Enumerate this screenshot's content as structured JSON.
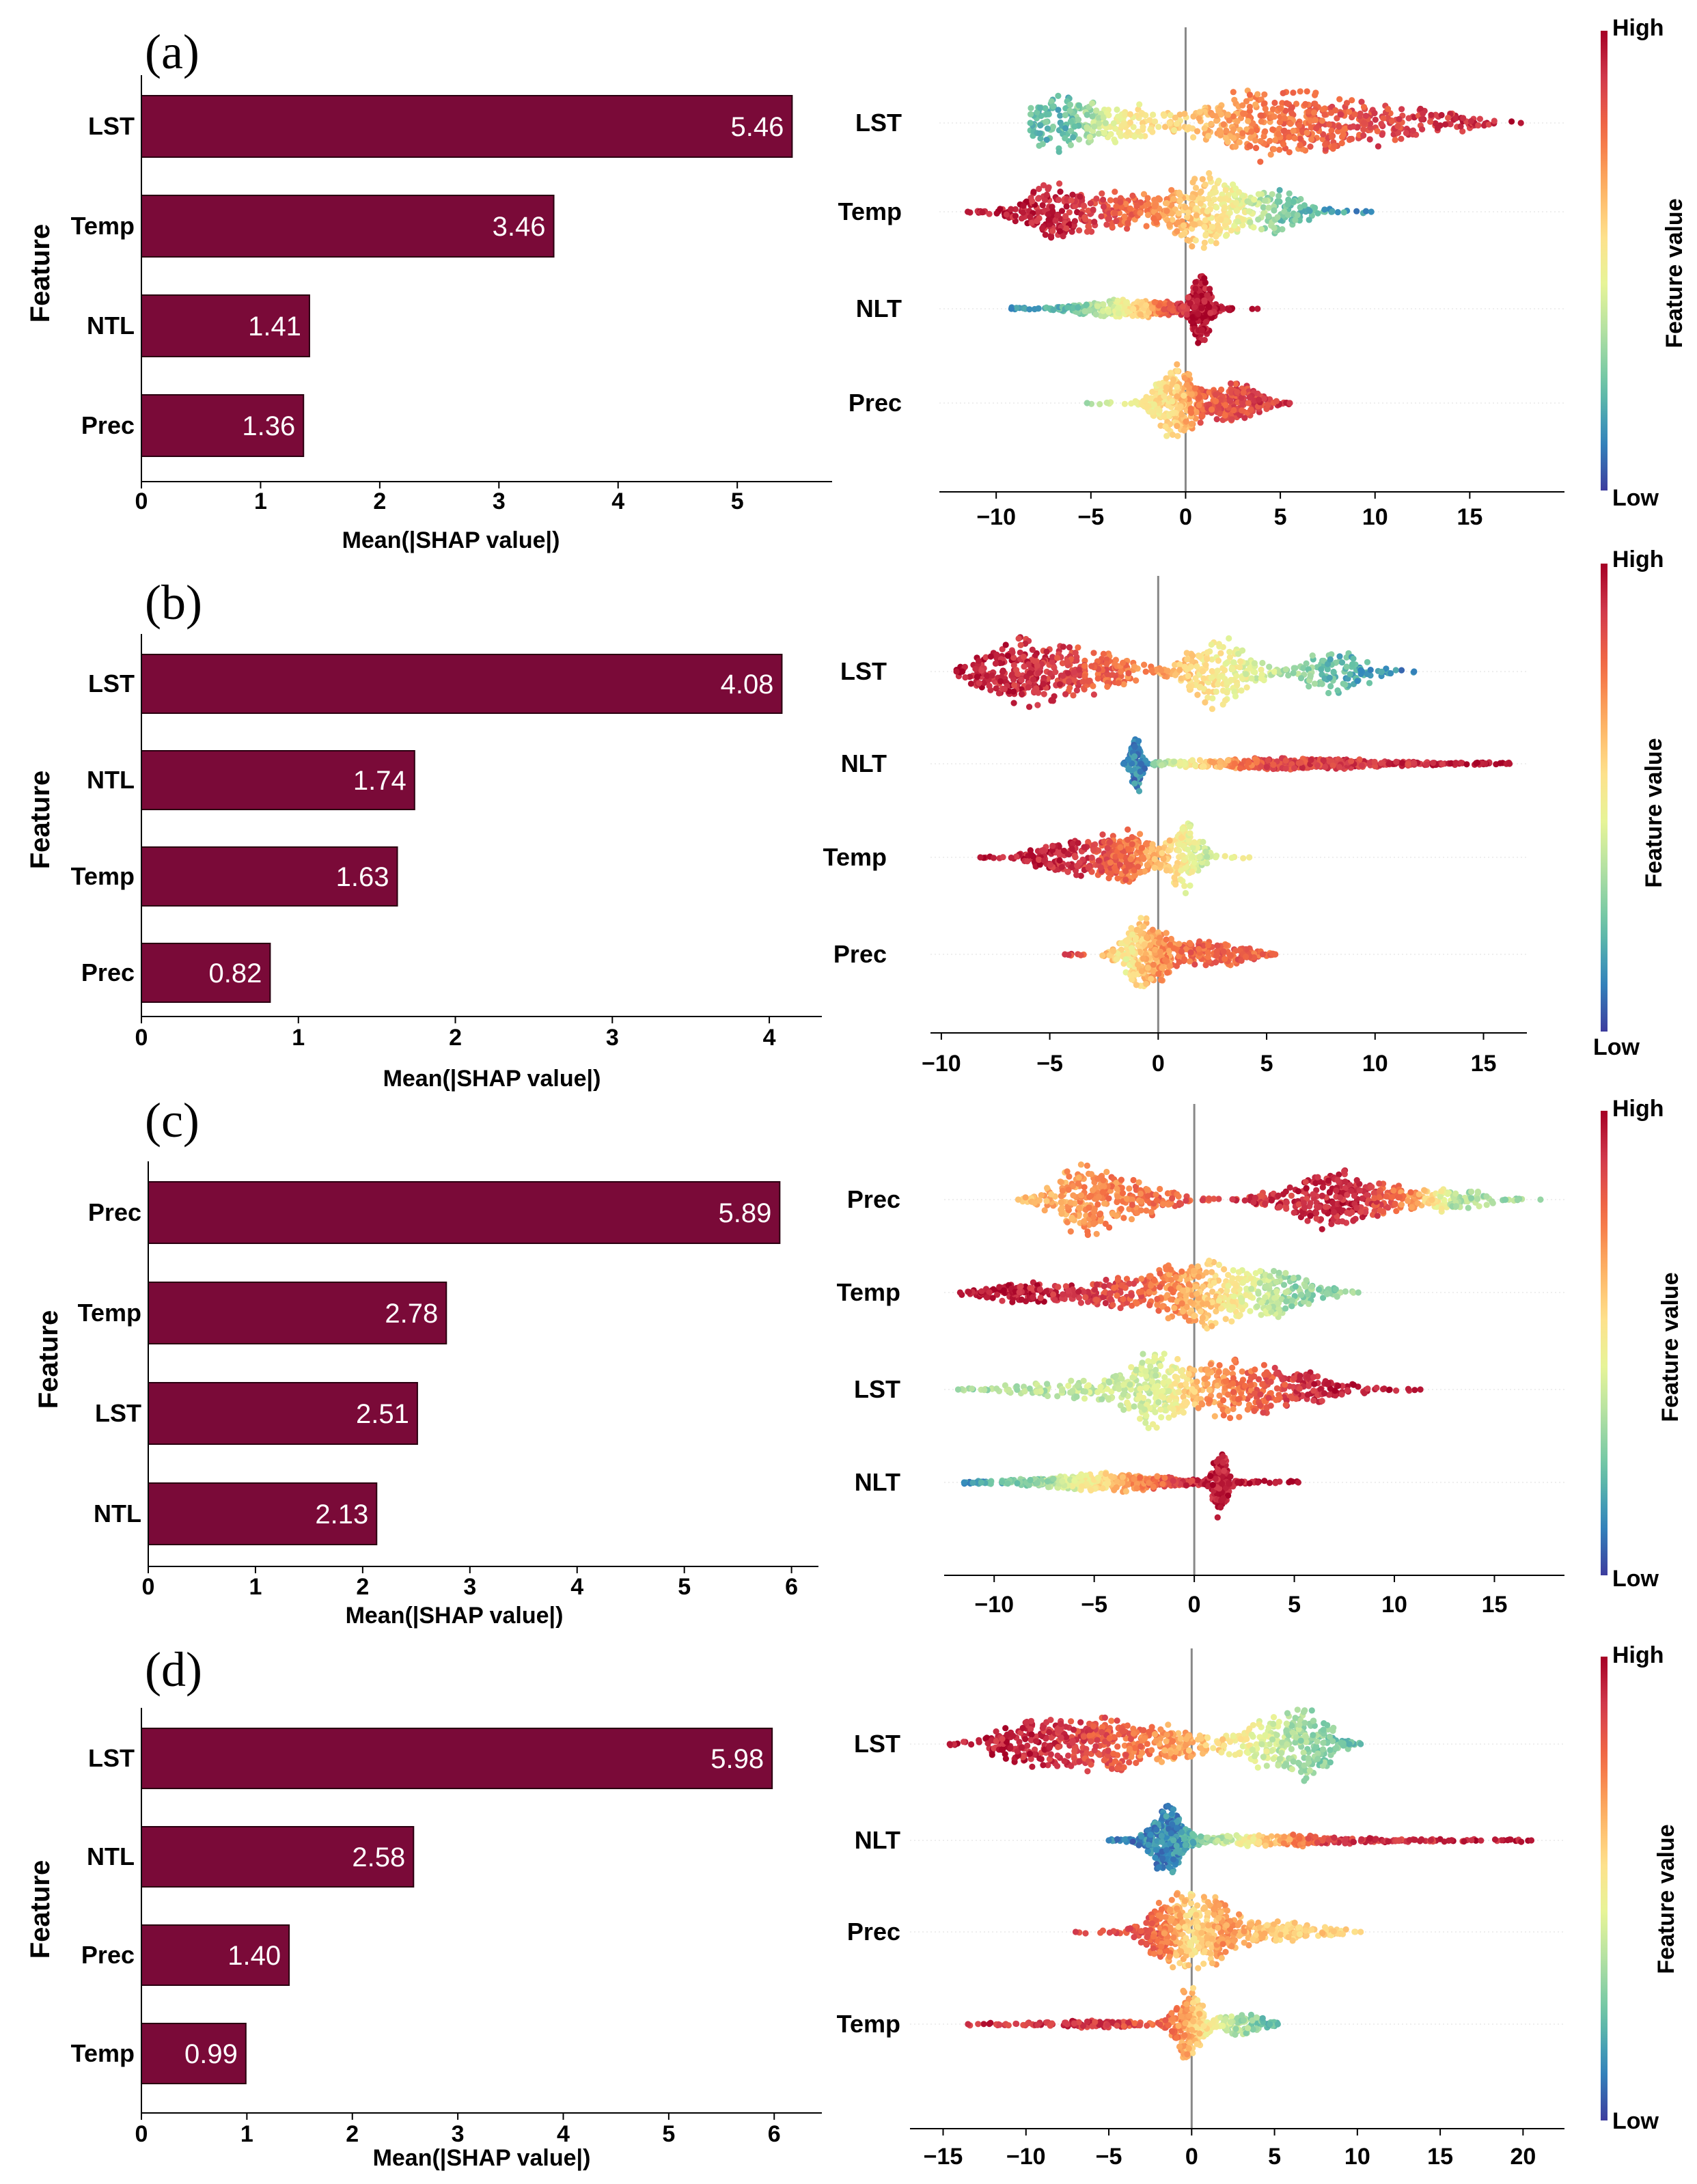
{
  "colors": {
    "bar_fill": "#7a0a38",
    "axis": "#000000",
    "zero_line": "#888888",
    "grid": "#eeeeee",
    "colormap": [
      "#3d3d9e",
      "#3288bd",
      "#66c2a5",
      "#abdda4",
      "#e6f598",
      "#fee08b",
      "#fdae61",
      "#f46d43",
      "#d53e4f",
      "#a50026"
    ]
  },
  "chart_data": [
    {
      "panel": "(a)",
      "type": "bar",
      "orientation": "horizontal",
      "categories": [
        "LST",
        "Temp",
        "NTL",
        "Prec"
      ],
      "values": [
        5.46,
        3.46,
        1.41,
        1.36
      ],
      "value_labels": [
        "5.46",
        "3.46",
        "1.41",
        "1.36"
      ],
      "xlabel": "Mean(|SHAP value|)",
      "ylabel": "Feature",
      "xticks": [
        0,
        1,
        2,
        3,
        4,
        5
      ],
      "xlim": [
        0,
        5.75
      ]
    },
    {
      "panel": "(a)",
      "type": "scatter",
      "subtype": "beeswarm",
      "features": [
        "LST",
        "Temp",
        "NLT",
        "Prec"
      ],
      "xticks": [
        -10,
        -5,
        0,
        5,
        10,
        15
      ],
      "xtick_labels": [
        "−10",
        "−5",
        "0",
        "5",
        "10",
        "15"
      ],
      "xlim": [
        -13,
        20
      ],
      "colorbar": {
        "label": "Feature value",
        "high": "High",
        "low": "Low"
      },
      "distributions": [
        {
          "min": -8.2,
          "max": 17.7,
          "modes": [
            [
              -6.8,
              1.4,
              0.55
            ],
            [
              -3.5,
              1.5,
              0.35
            ],
            [
              4.5,
              3.2,
              0.7
            ],
            [
              11,
              3.2,
              0.3
            ]
          ],
          "color_stops": [
            [
              -8.2,
              0.22
            ],
            [
              -6.2,
              0.22
            ],
            [
              -3.5,
              0.5
            ],
            [
              0,
              0.58
            ],
            [
              3,
              0.72
            ],
            [
              8,
              0.82
            ],
            [
              17.7,
              0.96
            ]
          ],
          "density": 180,
          "extent": 0.32
        },
        {
          "min": -11.5,
          "max": 9.8,
          "modes": [
            [
              -7.2,
              1.5,
              0.75
            ],
            [
              -3.3,
              1.6,
              0.5
            ],
            [
              1,
              1.5,
              1.0
            ],
            [
              5,
              1.4,
              0.55
            ]
          ],
          "color_stops": [
            [
              -11.5,
              0.96
            ],
            [
              -6,
              0.92
            ],
            [
              -2,
              0.75
            ],
            [
              0.8,
              0.58
            ],
            [
              3,
              0.45
            ],
            [
              5,
              0.25
            ],
            [
              9.8,
              0.12
            ]
          ],
          "density": 170,
          "extent": 0.34
        },
        {
          "min": -9.2,
          "max": 3.8,
          "modes": [
            [
              -2.8,
              2.4,
              0.35
            ],
            [
              0.8,
              0.4,
              1.3
            ]
          ],
          "color_stops": [
            [
              -9.2,
              0.1
            ],
            [
              -5,
              0.3
            ],
            [
              -2,
              0.65
            ],
            [
              0.2,
              0.96
            ],
            [
              3.8,
              0.96
            ]
          ],
          "density": 130,
          "extent": 0.34
        },
        {
          "min": -5.2,
          "max": 5.5,
          "modes": [
            [
              -0.5,
              0.9,
              1.0
            ],
            [
              2.5,
              1.2,
              0.55
            ]
          ],
          "color_stops": [
            [
              -5.2,
              0.3
            ],
            [
              -2,
              0.5
            ],
            [
              -0.3,
              0.6
            ],
            [
              1,
              0.82
            ],
            [
              5.5,
              0.9
            ]
          ],
          "density": 120,
          "extent": 0.38
        }
      ]
    },
    {
      "panel": "(b)",
      "type": "bar",
      "orientation": "horizontal",
      "categories": [
        "LST",
        "NTL",
        "Temp",
        "Prec"
      ],
      "values": [
        4.08,
        1.74,
        1.63,
        0.82
      ],
      "value_labels": [
        "4.08",
        "1.74",
        "1.63",
        "0.82"
      ],
      "xlabel": "Mean(|SHAP value|)",
      "ylabel": "Feature",
      "xticks": [
        0,
        1,
        2,
        3,
        4
      ],
      "xlim": [
        0,
        4.3
      ]
    },
    {
      "panel": "(b)",
      "type": "scatter",
      "subtype": "beeswarm",
      "features": [
        "LST",
        "NLT",
        "Temp",
        "Prec"
      ],
      "xticks": [
        -10,
        -5,
        0,
        5,
        10,
        15
      ],
      "xtick_labels": [
        "−10",
        "−5",
        "0",
        "5",
        "10",
        "15"
      ],
      "xlim": [
        -10.5,
        17
      ],
      "colorbar": {
        "label": "Feature value",
        "high": "High",
        "low": "Low"
      },
      "distributions": [
        {
          "min": -9.3,
          "max": 11.8,
          "modes": [
            [
              -6.2,
              1.7,
              0.85
            ],
            [
              -2.5,
              1.6,
              0.45
            ],
            [
              2.8,
              1.2,
              0.9
            ],
            [
              8.2,
              1.3,
              0.55
            ]
          ],
          "color_stops": [
            [
              -9.3,
              0.96
            ],
            [
              -5,
              0.9
            ],
            [
              -1,
              0.75
            ],
            [
              2,
              0.55
            ],
            [
              5.5,
              0.38
            ],
            [
              8,
              0.22
            ],
            [
              11.8,
              0.1
            ]
          ],
          "density": 180,
          "extent": 0.32
        },
        {
          "min": -1.6,
          "max": 16.2,
          "modes": [
            [
              -1.0,
              0.2,
              1.3
            ],
            [
              6,
              4.2,
              0.22
            ]
          ],
          "color_stops": [
            [
              -1.6,
              0.1
            ],
            [
              -0.6,
              0.12
            ],
            [
              0.2,
              0.32
            ],
            [
              2,
              0.6
            ],
            [
              5,
              0.85
            ],
            [
              16.2,
              0.96
            ]
          ],
          "density": 140,
          "extent": 0.34
        },
        {
          "min": -8.2,
          "max": 4.2,
          "modes": [
            [
              -3.8,
              1.6,
              0.5
            ],
            [
              -1.2,
              1.0,
              0.6
            ],
            [
              1.3,
              0.6,
              1.0
            ]
          ],
          "color_stops": [
            [
              -8.2,
              0.96
            ],
            [
              -4,
              0.92
            ],
            [
              -1,
              0.75
            ],
            [
              0.8,
              0.55
            ],
            [
              2,
              0.4
            ],
            [
              4.2,
              0.5
            ]
          ],
          "density": 130,
          "extent": 0.36
        },
        {
          "min": -4.3,
          "max": 5.4,
          "modes": [
            [
              -0.6,
              0.8,
              1.0
            ],
            [
              2.5,
              1.3,
              0.4
            ]
          ],
          "color_stops": [
            [
              -4.3,
              0.9
            ],
            [
              -1.5,
              0.5
            ],
            [
              0,
              0.7
            ],
            [
              1.5,
              0.8
            ],
            [
              5.4,
              0.8
            ]
          ],
          "density": 120,
          "extent": 0.34
        }
      ]
    },
    {
      "panel": "(c)",
      "type": "bar",
      "orientation": "horizontal",
      "categories": [
        "Prec",
        "Temp",
        "LST",
        "NTL"
      ],
      "values": [
        5.89,
        2.78,
        2.51,
        2.13
      ],
      "value_labels": [
        "5.89",
        "2.78",
        "2.51",
        "2.13"
      ],
      "xlabel": "Mean(|SHAP value|)",
      "ylabel": "Feature",
      "xticks": [
        0,
        1,
        2,
        3,
        4,
        5,
        6
      ],
      "xlim": [
        0,
        6.2
      ]
    },
    {
      "panel": "(c)",
      "type": "scatter",
      "subtype": "beeswarm",
      "features": [
        "Prec",
        "Temp",
        "LST",
        "NLT"
      ],
      "xticks": [
        -10,
        -5,
        0,
        5,
        10,
        15
      ],
      "xtick_labels": [
        "−10",
        "−5",
        "0",
        "5",
        "10",
        "15"
      ],
      "xlim": [
        -12.5,
        18.5
      ],
      "colorbar": {
        "label": "Feature value",
        "high": "High",
        "low": "Low"
      },
      "distributions": [
        {
          "min": -8.8,
          "max": 17.3,
          "modes": [
            [
              -5.5,
              1.3,
              0.9
            ],
            [
              -2.5,
              1.4,
              0.35
            ],
            [
              7.2,
              2.2,
              0.75
            ],
            [
              13,
              1.6,
              0.25
            ]
          ],
          "color_stops": [
            [
              -8.8,
              0.62
            ],
            [
              -5,
              0.72
            ],
            [
              -2,
              0.78
            ],
            [
              3,
              0.9
            ],
            [
              8,
              0.94
            ],
            [
              11,
              0.7
            ],
            [
              13,
              0.35
            ],
            [
              17.3,
              0.3
            ]
          ],
          "density": 180,
          "extent": 0.3
        },
        {
          "min": -11.7,
          "max": 8.2,
          "modes": [
            [
              -8.5,
              1.8,
              0.3
            ],
            [
              -4.2,
              1.3,
              0.35
            ],
            [
              0,
              1.7,
              0.95
            ],
            [
              4.2,
              1.6,
              0.6
            ]
          ],
          "color_stops": [
            [
              -11.7,
              0.96
            ],
            [
              -6,
              0.92
            ],
            [
              -2,
              0.78
            ],
            [
              0.5,
              0.62
            ],
            [
              3,
              0.42
            ],
            [
              5,
              0.3
            ],
            [
              8.2,
              0.3
            ]
          ],
          "density": 170,
          "extent": 0.34
        },
        {
          "min": -11.8,
          "max": 11.3,
          "modes": [
            [
              -2.0,
              1.3,
              0.95
            ],
            [
              2,
              1.5,
              0.8
            ],
            [
              5.5,
              1.8,
              0.45
            ],
            [
              -6.5,
              2.5,
              0.25
            ]
          ],
          "color_stops": [
            [
              -11.8,
              0.3
            ],
            [
              -6,
              0.38
            ],
            [
              -1.5,
              0.42
            ],
            [
              0.5,
              0.68
            ],
            [
              3,
              0.8
            ],
            [
              7,
              0.95
            ],
            [
              11.3,
              0.96
            ]
          ],
          "density": 160,
          "extent": 0.32
        },
        {
          "min": -11.5,
          "max": 5.2,
          "modes": [
            [
              -4.5,
              3.0,
              0.35
            ],
            [
              1.3,
              0.3,
              1.4
            ]
          ],
          "color_stops": [
            [
              -11.5,
              0.12
            ],
            [
              -7,
              0.35
            ],
            [
              -3,
              0.7
            ],
            [
              0.5,
              0.95
            ],
            [
              5.2,
              0.96
            ]
          ],
          "density": 140,
          "extent": 0.34
        }
      ]
    },
    {
      "panel": "(d)",
      "type": "bar",
      "orientation": "horizontal",
      "categories": [
        "LST",
        "NTL",
        "Prec",
        "Temp"
      ],
      "values": [
        5.98,
        2.58,
        1.4,
        0.99
      ],
      "value_labels": [
        "5.98",
        "2.58",
        "1.40",
        "0.99"
      ],
      "xlabel": "Mean(|SHAP value|)",
      "ylabel": "Feature",
      "xticks": [
        0,
        1,
        2,
        3,
        4,
        5,
        6
      ],
      "xlim": [
        0,
        6.4
      ]
    },
    {
      "panel": "(d)",
      "type": "scatter",
      "subtype": "beeswarm",
      "features": [
        "LST",
        "NLT",
        "Prec",
        "Temp"
      ],
      "xticks": [
        -15,
        -10,
        -5,
        0,
        5,
        10,
        15,
        20
      ],
      "xtick_labels": [
        "−15",
        "−10",
        "−5",
        "0",
        "5",
        "10",
        "15",
        "20"
      ],
      "xlim": [
        -17,
        22.5
      ],
      "colorbar": {
        "label": "Feature value",
        "high": "High",
        "low": "Low"
      },
      "distributions": [
        {
          "min": -14.6,
          "max": 10.2,
          "modes": [
            [
              -9.5,
              2.0,
              0.7
            ],
            [
              -5,
              1.8,
              0.75
            ],
            [
              -1,
              1.5,
              0.45
            ],
            [
              4,
              1.5,
              0.55
            ],
            [
              7,
              1.3,
              0.95
            ]
          ],
          "color_stops": [
            [
              -14.6,
              0.96
            ],
            [
              -9,
              0.92
            ],
            [
              -4,
              0.8
            ],
            [
              0,
              0.65
            ],
            [
              3,
              0.5
            ],
            [
              6,
              0.35
            ],
            [
              10.2,
              0.2
            ]
          ],
          "density": 190,
          "extent": 0.3
        },
        {
          "min": -5,
          "max": 20.5,
          "modes": [
            [
              -1.5,
              0.8,
              1.2
            ],
            [
              5,
              4.5,
              0.2
            ]
          ],
          "color_stops": [
            [
              -5,
              0.1
            ],
            [
              -1,
              0.12
            ],
            [
              1,
              0.3
            ],
            [
              4,
              0.55
            ],
            [
              8,
              0.88
            ],
            [
              20.5,
              0.96
            ]
          ],
          "density": 150,
          "extent": 0.34
        },
        {
          "min": -7,
          "max": 10.2,
          "modes": [
            [
              -1.5,
              1.2,
              0.9
            ],
            [
              1,
              1.2,
              0.85
            ],
            [
              5,
              2.5,
              0.3
            ]
          ],
          "color_stops": [
            [
              -7,
              0.9
            ],
            [
              -2,
              0.8
            ],
            [
              0,
              0.55
            ],
            [
              2,
              0.7
            ],
            [
              5,
              0.6
            ],
            [
              10.2,
              0.58
            ]
          ],
          "density": 150,
          "extent": 0.36
        },
        {
          "min": -13.5,
          "max": 5.2,
          "modes": [
            [
              -0.2,
              0.7,
              1.2
            ],
            [
              3,
              1.2,
              0.35
            ],
            [
              -6,
              3.0,
              0.12
            ]
          ],
          "color_stops": [
            [
              -13.5,
              0.92
            ],
            [
              -5,
              0.9
            ],
            [
              -1,
              0.75
            ],
            [
              0.5,
              0.58
            ],
            [
              2,
              0.4
            ],
            [
              5.2,
              0.2
            ]
          ],
          "density": 110,
          "extent": 0.32
        }
      ]
    }
  ]
}
